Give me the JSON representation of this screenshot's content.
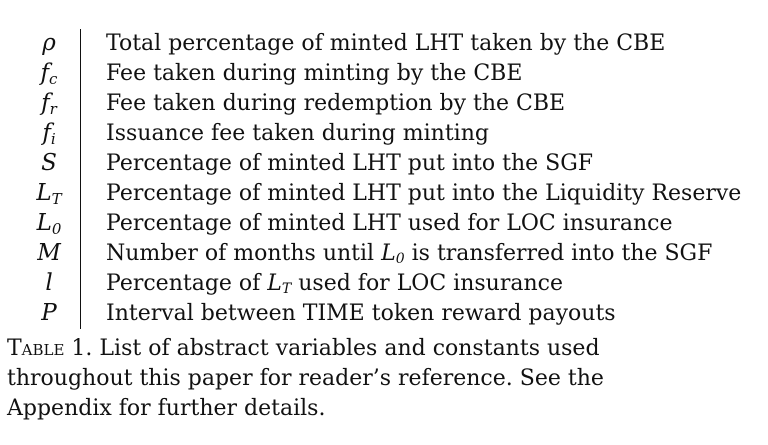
{
  "table": {
    "rows": [
      {
        "symbol": "ρ",
        "sub": "",
        "description": "Total percentage of minted LHT taken by the CBE"
      },
      {
        "symbol": "f",
        "sub": "c",
        "description": "Fee taken during minting by the CBE"
      },
      {
        "symbol": "f",
        "sub": "r",
        "description": "Fee taken during redemption by the CBE"
      },
      {
        "symbol": "f",
        "sub": "i",
        "description": "Issuance fee taken during minting"
      },
      {
        "symbol": "S",
        "sub": "",
        "description": "Percentage of minted LHT put into the SGF"
      },
      {
        "symbol": "L",
        "sub": "T",
        "description": "Percentage of minted LHT put into the Liquidity Reserve"
      },
      {
        "symbol": "L",
        "sub": "0",
        "description": "Percentage of minted LHT used for LOC insurance"
      },
      {
        "symbol": "M",
        "sub": "",
        "description_pre": "Number of months until ",
        "math": "L",
        "math_sub": "0",
        "description_post": " is transferred into the SGF"
      },
      {
        "symbol": "l",
        "sub": "",
        "description_pre": "Percentage of ",
        "math": "L",
        "math_sub": "T",
        "description_post": " used for LOC insurance"
      },
      {
        "symbol": "P",
        "sub": "",
        "description": "Interval between TIME token reward payouts"
      }
    ]
  },
  "caption": {
    "label": "Table 1.",
    "text": " List of abstract variables and constants used throughout this paper for reader’s reference. See the Appendix for further details."
  }
}
